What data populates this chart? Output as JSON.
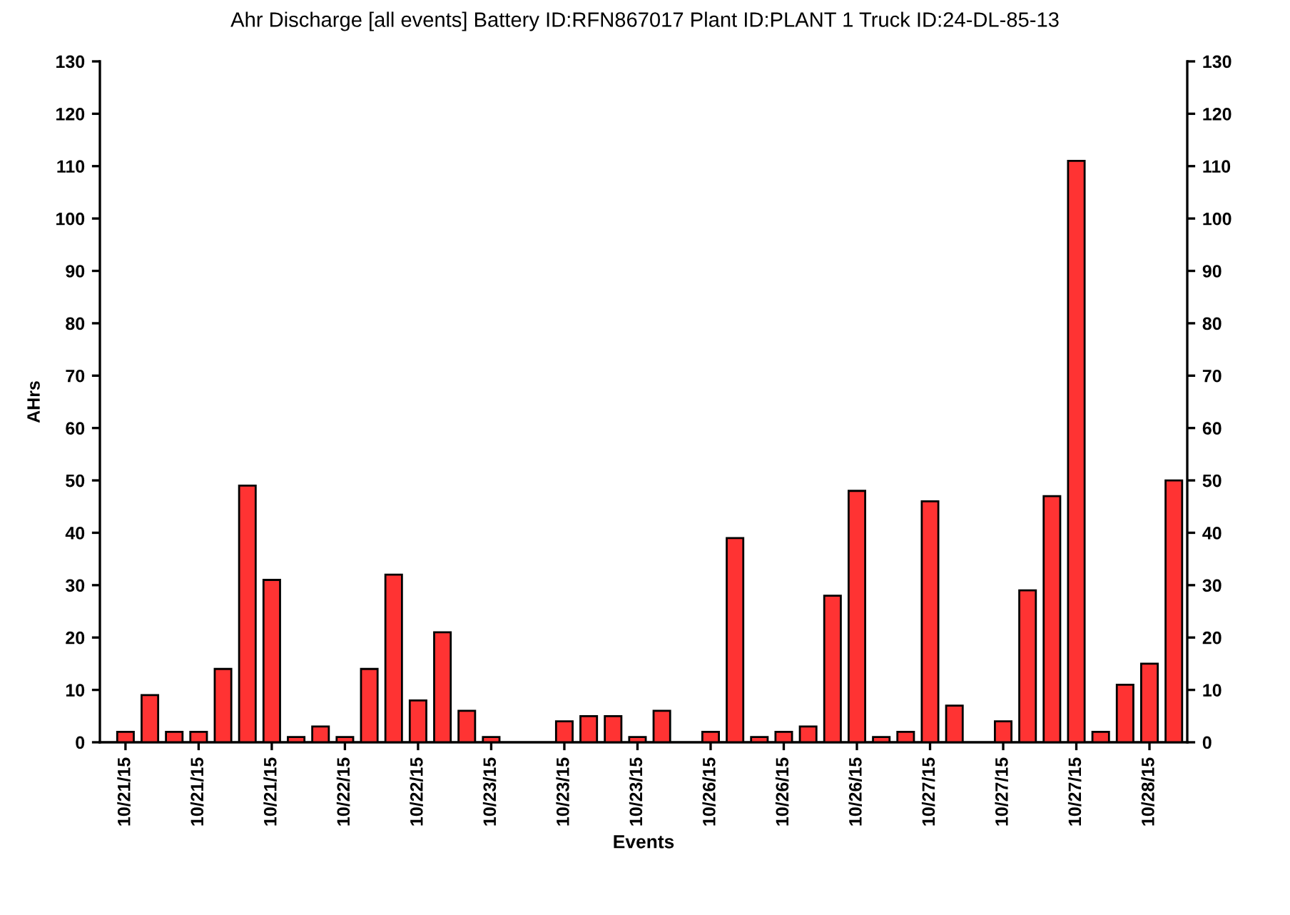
{
  "chart_data": {
    "type": "bar",
    "title": "Ahr Discharge [all events] Battery ID:RFN867017 Plant ID:PLANT 1 Truck ID:24-DL-85-13",
    "xlabel": "Events",
    "ylabel": "AHrs",
    "categories": [
      "10/21/15",
      null,
      null,
      "10/21/15",
      null,
      null,
      "10/21/15",
      null,
      null,
      "10/22/15",
      null,
      null,
      "10/22/15",
      null,
      null,
      "10/23/15",
      null,
      null,
      "10/23/15",
      null,
      null,
      "10/23/15",
      null,
      null,
      "10/26/15",
      null,
      null,
      "10/26/15",
      null,
      null,
      "10/26/15",
      null,
      null,
      "10/27/15",
      null,
      null,
      "10/27/15",
      null,
      null,
      "10/27/15",
      null,
      null,
      "10/28/15",
      null
    ],
    "values": [
      2,
      9,
      2,
      2,
      14,
      49,
      31,
      1,
      3,
      1,
      14,
      32,
      8,
      21,
      6,
      1,
      null,
      null,
      4,
      5,
      5,
      1,
      6,
      null,
      2,
      39,
      1,
      2,
      3,
      28,
      48,
      1,
      2,
      46,
      7,
      null,
      4,
      29,
      47,
      111,
      2,
      11,
      15,
      50
    ],
    "color": "#ff3333",
    "ylim": [
      0,
      130
    ],
    "yticks": [
      0,
      10,
      20,
      30,
      40,
      50,
      60,
      70,
      80,
      90,
      100,
      110,
      120,
      130
    ],
    "y2lim": [
      0,
      130
    ],
    "y2ticks": [
      0,
      10,
      20,
      30,
      40,
      50,
      60,
      70,
      80,
      90,
      100,
      110,
      120,
      130
    ],
    "grid": false
  }
}
